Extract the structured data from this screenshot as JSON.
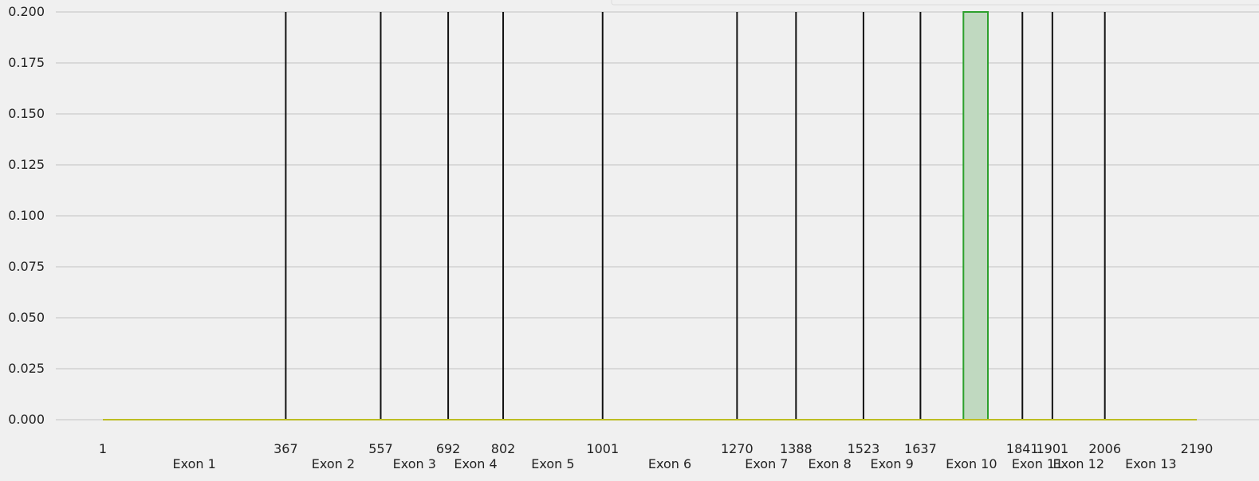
{
  "chart_data": {
    "type": "area",
    "title": "",
    "xlabel": "",
    "ylabel": "",
    "xlim": [
      1,
      2190
    ],
    "ylim": [
      0,
      0.2
    ],
    "grid": "horizontal",
    "y_ticks": [
      "0.000",
      "0.025",
      "0.050",
      "0.075",
      "0.100",
      "0.125",
      "0.150",
      "0.175",
      "0.200"
    ],
    "exon_boundaries": [
      367,
      557,
      692,
      802,
      1001,
      1270,
      1388,
      1523,
      1637,
      1841,
      1901,
      2006
    ],
    "x_ticks": [
      "1",
      "367",
      "557",
      "692",
      "802",
      "1001",
      "1270",
      "1388",
      "1523",
      "1637",
      "1841",
      "1901",
      "2006",
      "2190"
    ],
    "exons": [
      {
        "label": "Exon 1",
        "start": 1,
        "end": 367
      },
      {
        "label": "Exon 2",
        "start": 367,
        "end": 557
      },
      {
        "label": "Exon 3",
        "start": 557,
        "end": 692
      },
      {
        "label": "Exon 4",
        "start": 692,
        "end": 802
      },
      {
        "label": "Exon 5",
        "start": 802,
        "end": 1001
      },
      {
        "label": "Exon 6",
        "start": 1001,
        "end": 1270
      },
      {
        "label": "Exon 7",
        "start": 1270,
        "end": 1388
      },
      {
        "label": "Exon 8",
        "start": 1388,
        "end": 1523
      },
      {
        "label": "Exon 9",
        "start": 1523,
        "end": 1637
      },
      {
        "label": "Exon 10",
        "start": 1637,
        "end": 1841
      },
      {
        "label": "Exon 11",
        "start": 1841,
        "end": 1901
      },
      {
        "label": "Exon 12",
        "start": 1901,
        "end": 2006
      },
      {
        "label": "Exon 13",
        "start": 2006,
        "end": 2190
      }
    ],
    "series": [
      {
        "color": "#ff7f0e",
        "values": [
          [
            1,
            0
          ],
          [
            2190,
            0
          ]
        ]
      },
      {
        "color": "#2ca02c",
        "fill": "#c0d9c0",
        "values": [
          [
            1,
            0
          ],
          [
            1723,
            0
          ],
          [
            1723,
            0.2
          ],
          [
            1772,
            0.2
          ],
          [
            1772,
            0
          ],
          [
            2190,
            0
          ]
        ]
      },
      {
        "color": "#bcbd22",
        "values": [
          [
            1,
            0
          ],
          [
            2190,
            0
          ]
        ]
      }
    ],
    "colors": {
      "boundary": "#111111",
      "grid": "#cbcbcb",
      "background": "#f0f0f0"
    }
  }
}
